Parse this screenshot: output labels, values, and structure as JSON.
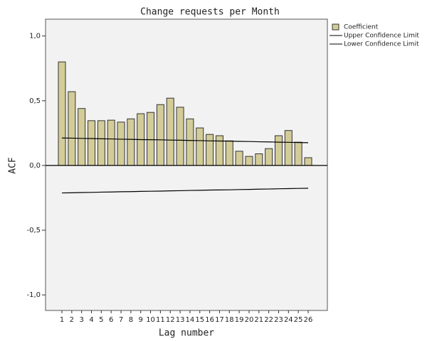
{
  "chart_data": {
    "type": "bar",
    "title": "Change requests per Month",
    "x_label": "Lag number",
    "y_label": "ACF",
    "categories": [
      1,
      2,
      3,
      4,
      5,
      6,
      7,
      8,
      9,
      10,
      11,
      12,
      13,
      14,
      15,
      16,
      17,
      18,
      19,
      20,
      21,
      22,
      23,
      24,
      25,
      26
    ],
    "series": [
      {
        "name": "Coefficient",
        "type": "bar",
        "color": "#d3cc98",
        "values": [
          0.8,
          0.57,
          0.44,
          0.346,
          0.346,
          0.35,
          0.335,
          0.36,
          0.4,
          0.41,
          0.47,
          0.52,
          0.45,
          0.36,
          0.29,
          0.24,
          0.23,
          0.19,
          0.11,
          0.07,
          0.09,
          0.13,
          0.23,
          0.27,
          0.18,
          0.06
        ]
      },
      {
        "name": "Upper Confidence Limit",
        "type": "line",
        "color": "#000000",
        "values": [
          0.212,
          0.211,
          0.209,
          0.208,
          0.206,
          0.205,
          0.203,
          0.202,
          0.2,
          0.199,
          0.198,
          0.196,
          0.195,
          0.193,
          0.192,
          0.19,
          0.189,
          0.188,
          0.186,
          0.185,
          0.183,
          0.182,
          0.18,
          0.179,
          0.177,
          0.176
        ]
      },
      {
        "name": "Lower Confidence Limit",
        "type": "line",
        "color": "#000000",
        "values": [
          -0.212,
          -0.211,
          -0.209,
          -0.208,
          -0.206,
          -0.205,
          -0.203,
          -0.202,
          -0.2,
          -0.199,
          -0.198,
          -0.196,
          -0.195,
          -0.193,
          -0.192,
          -0.19,
          -0.189,
          -0.188,
          -0.186,
          -0.185,
          -0.183,
          -0.182,
          -0.18,
          -0.179,
          -0.177,
          -0.176
        ]
      }
    ],
    "ylim": [
      -1.12,
      1.13
    ],
    "yticks": [
      {
        "value": -1.0,
        "label": "-1,0"
      },
      {
        "value": -0.5,
        "label": "-0,5"
      },
      {
        "value": 0,
        "label": "0,0"
      },
      {
        "value": 0.5,
        "label": "0,5"
      },
      {
        "value": 1.0,
        "label": "1,0"
      }
    ],
    "legend": "top-right"
  }
}
